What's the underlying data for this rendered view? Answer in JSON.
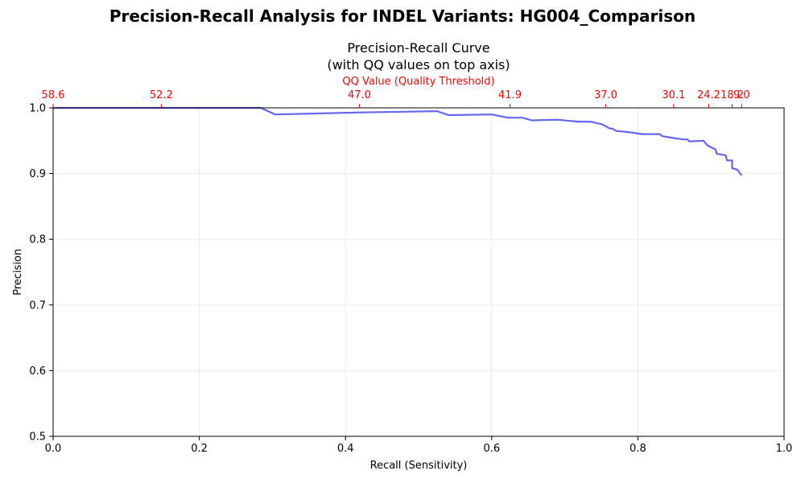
{
  "figure_title": "Precision-Recall Analysis for INDEL Variants: HG004_Comparison",
  "chart_data": {
    "type": "line",
    "title_line1": "Precision-Recall Curve",
    "title_line2": "(with QQ values on top axis)",
    "xlabel": "Recall (Sensitivity)",
    "ylabel": "Precision",
    "top_axis_label": "QQ Value (Quality Threshold)",
    "xlim": [
      0.0,
      1.0
    ],
    "ylim": [
      0.5,
      1.0
    ],
    "grid": true,
    "x_ticks": [
      0.0,
      0.2,
      0.4,
      0.6,
      0.8,
      1.0
    ],
    "x_tick_labels": [
      "0.0",
      "0.2",
      "0.4",
      "0.6",
      "0.8",
      "1.0"
    ],
    "y_ticks": [
      0.5,
      0.6,
      0.7,
      0.8,
      0.9,
      1.0
    ],
    "y_tick_labels": [
      "0.5",
      "0.6",
      "0.7",
      "0.8",
      "0.9",
      "1.0"
    ],
    "top_ticks": [
      {
        "x": 0.0,
        "label": "58.6"
      },
      {
        "x": 0.148,
        "label": "52.2"
      },
      {
        "x": 0.419,
        "label": "47.0"
      },
      {
        "x": 0.625,
        "label": "41.9"
      },
      {
        "x": 0.756,
        "label": "37.0"
      },
      {
        "x": 0.849,
        "label": "30.1"
      },
      {
        "x": 0.897,
        "label": "24.2"
      },
      {
        "x": 0.929,
        "label": "18.2"
      },
      {
        "x": 0.942,
        "label": "9.0"
      }
    ],
    "line_color": "#4a4aee",
    "top_axis_color": "#ff0000",
    "series": [
      {
        "x": [
          0.0,
          0.284,
          0.304,
          0.42,
          0.525,
          0.541,
          0.6,
          0.622,
          0.642,
          0.655,
          0.69,
          0.718,
          0.735,
          0.751,
          0.761,
          0.766,
          0.77,
          0.788,
          0.806,
          0.83,
          0.833,
          0.849,
          0.862,
          0.868,
          0.87,
          0.89,
          0.895,
          0.902,
          0.906,
          0.908,
          0.92,
          0.922,
          0.929,
          0.929,
          0.936,
          0.94,
          0.942
        ],
        "y": [
          1.0,
          1.0,
          0.99,
          0.993,
          0.995,
          0.989,
          0.99,
          0.985,
          0.985,
          0.981,
          0.982,
          0.979,
          0.979,
          0.975,
          0.969,
          0.968,
          0.965,
          0.963,
          0.96,
          0.96,
          0.957,
          0.954,
          0.952,
          0.952,
          0.949,
          0.95,
          0.943,
          0.939,
          0.937,
          0.93,
          0.928,
          0.92,
          0.92,
          0.908,
          0.906,
          0.9,
          0.897
        ]
      }
    ]
  }
}
